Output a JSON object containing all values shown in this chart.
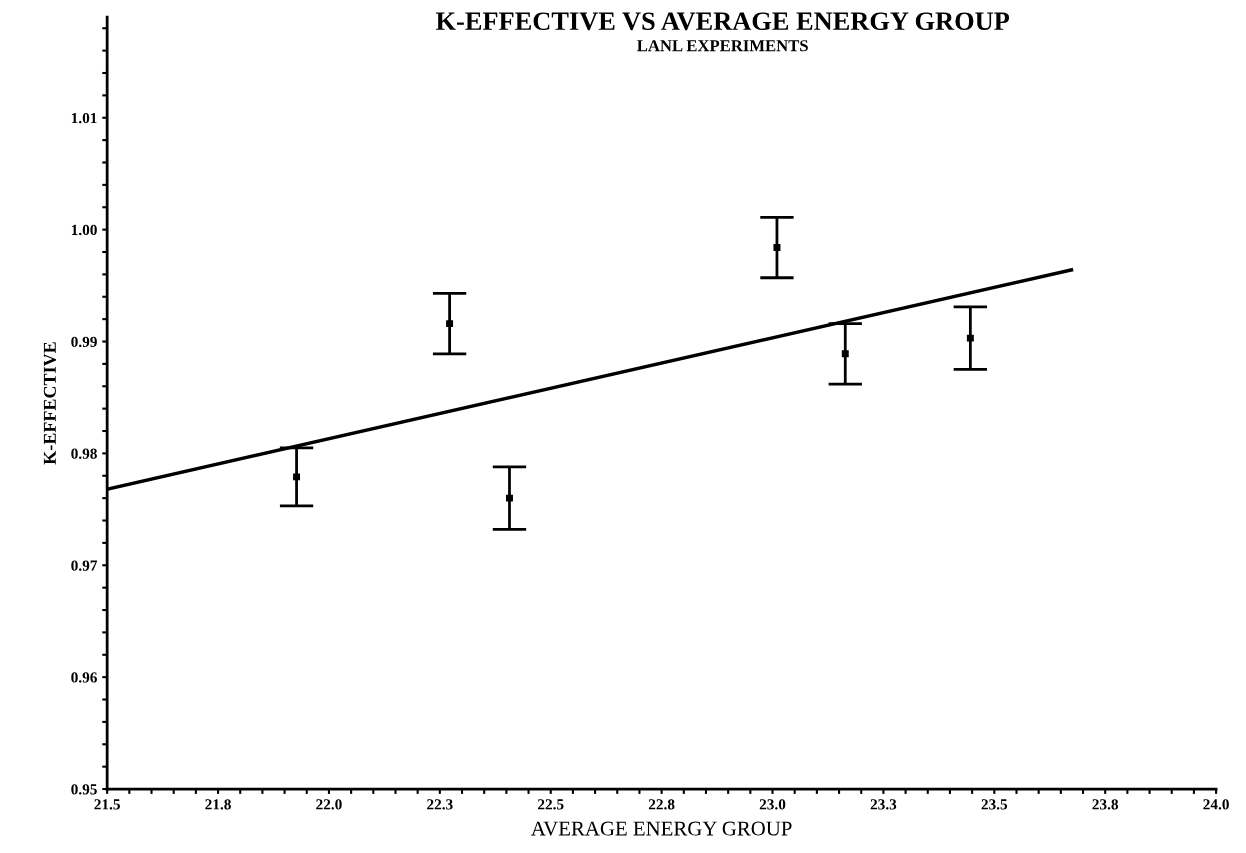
{
  "chart_data": {
    "type": "scatter",
    "title": "K-EFFECTIVE VS AVERAGE ENERGY GROUP",
    "subtitle": "LANL EXPERIMENTS",
    "xlabel": "AVERAGE ENERGY GROUP",
    "ylabel": "K-EFFECTIVE",
    "series": [
      {
        "color": "#000000",
        "marker": "square",
        "x": [
          21.927,
          22.272,
          22.407,
          23.01,
          23.164,
          23.446
        ],
        "values": [
          0.9779,
          0.9916,
          0.976,
          0.9984,
          0.9889,
          0.9903
        ],
        "errors": [
          0.0026,
          0.0027,
          0.0028,
          0.0027,
          0.0027,
          0.0028
        ]
      },
      {
        "type": "line",
        "color": "#000000",
        "line_style": "solid",
        "x": [
          21.5,
          23.674
        ],
        "values": [
          0.9768,
          0.9964
        ]
      }
    ],
    "xlim": [
      21.5,
      24.0
    ],
    "ylim": [
      0.95,
      1.019
    ],
    "xticks": [
      {
        "value": 21.5,
        "label": "21.5"
      },
      {
        "value": 21.55,
        "label": null
      },
      {
        "value": 21.6,
        "label": null
      },
      {
        "value": 21.65,
        "label": null
      },
      {
        "value": 21.7,
        "label": null
      },
      {
        "value": 21.75,
        "label": "21.8"
      },
      {
        "value": 21.8,
        "label": null
      },
      {
        "value": 21.85,
        "label": null
      },
      {
        "value": 21.9,
        "label": null
      },
      {
        "value": 21.95,
        "label": null
      },
      {
        "value": 22.0,
        "label": "22.0"
      },
      {
        "value": 22.05,
        "label": null
      },
      {
        "value": 22.1,
        "label": null
      },
      {
        "value": 22.15,
        "label": null
      },
      {
        "value": 22.2,
        "label": null
      },
      {
        "value": 22.25,
        "label": "22.3"
      },
      {
        "value": 22.3,
        "label": null
      },
      {
        "value": 22.35,
        "label": null
      },
      {
        "value": 22.4,
        "label": null
      },
      {
        "value": 22.45,
        "label": null
      },
      {
        "value": 22.5,
        "label": "22.5"
      },
      {
        "value": 22.55,
        "label": null
      },
      {
        "value": 22.6,
        "label": null
      },
      {
        "value": 22.65,
        "label": null
      },
      {
        "value": 22.7,
        "label": null
      },
      {
        "value": 22.75,
        "label": "22.8"
      },
      {
        "value": 22.8,
        "label": null
      },
      {
        "value": 22.85,
        "label": null
      },
      {
        "value": 22.9,
        "label": null
      },
      {
        "value": 22.95,
        "label": null
      },
      {
        "value": 23.0,
        "label": "23.0"
      },
      {
        "value": 23.05,
        "label": null
      },
      {
        "value": 23.1,
        "label": null
      },
      {
        "value": 23.15,
        "label": null
      },
      {
        "value": 23.2,
        "label": null
      },
      {
        "value": 23.25,
        "label": "23.3"
      },
      {
        "value": 23.3,
        "label": null
      },
      {
        "value": 23.35,
        "label": null
      },
      {
        "value": 23.4,
        "label": null
      },
      {
        "value": 23.45,
        "label": null
      },
      {
        "value": 23.5,
        "label": "23.5"
      },
      {
        "value": 23.55,
        "label": null
      },
      {
        "value": 23.6,
        "label": null
      },
      {
        "value": 23.65,
        "label": null
      },
      {
        "value": 23.7,
        "label": null
      },
      {
        "value": 23.75,
        "label": "23.8"
      },
      {
        "value": 23.8,
        "label": null
      },
      {
        "value": 23.85,
        "label": null
      },
      {
        "value": 23.9,
        "label": null
      },
      {
        "value": 23.95,
        "label": null
      },
      {
        "value": 24.0,
        "label": "24.0"
      }
    ],
    "yticks": [
      {
        "value": 0.95,
        "label": "0.95"
      },
      {
        "value": 0.952,
        "label": null
      },
      {
        "value": 0.954,
        "label": null
      },
      {
        "value": 0.956,
        "label": null
      },
      {
        "value": 0.958,
        "label": null
      },
      {
        "value": 0.96,
        "label": "0.96"
      },
      {
        "value": 0.962,
        "label": null
      },
      {
        "value": 0.964,
        "label": null
      },
      {
        "value": 0.966,
        "label": null
      },
      {
        "value": 0.968,
        "label": null
      },
      {
        "value": 0.97,
        "label": "0.97"
      },
      {
        "value": 0.972,
        "label": null
      },
      {
        "value": 0.974,
        "label": null
      },
      {
        "value": 0.976,
        "label": null
      },
      {
        "value": 0.978,
        "label": null
      },
      {
        "value": 0.98,
        "label": "0.98"
      },
      {
        "value": 0.982,
        "label": null
      },
      {
        "value": 0.984,
        "label": null
      },
      {
        "value": 0.986,
        "label": null
      },
      {
        "value": 0.988,
        "label": null
      },
      {
        "value": 0.99,
        "label": "0.99"
      },
      {
        "value": 0.992,
        "label": null
      },
      {
        "value": 0.994,
        "label": null
      },
      {
        "value": 0.996,
        "label": null
      },
      {
        "value": 0.998,
        "label": null
      },
      {
        "value": 1.0,
        "label": "1.00"
      },
      {
        "value": 1.002,
        "label": null
      },
      {
        "value": 1.004,
        "label": null
      },
      {
        "value": 1.006,
        "label": null
      },
      {
        "value": 1.008,
        "label": null
      },
      {
        "value": 1.01,
        "label": "1.01"
      },
      {
        "value": 1.012,
        "label": null
      },
      {
        "value": 1.014,
        "label": null
      },
      {
        "value": 1.016,
        "label": null
      },
      {
        "value": 1.018,
        "label": null
      }
    ],
    "grid": false,
    "legend": false
  }
}
